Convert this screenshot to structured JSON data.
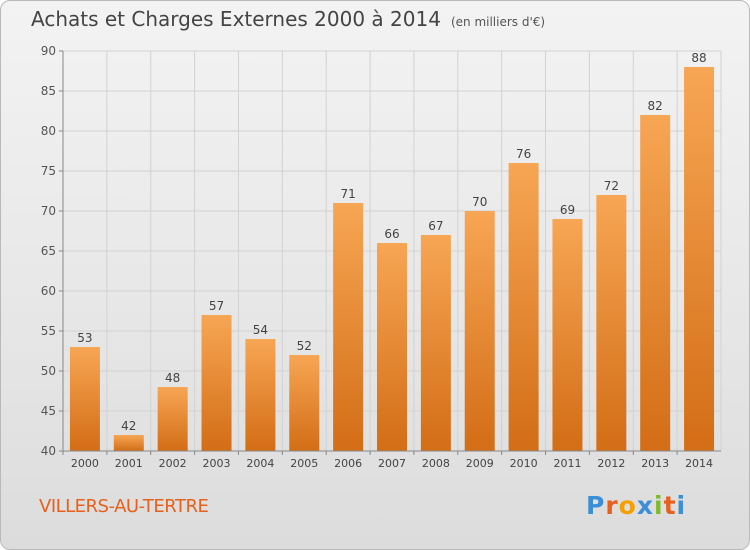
{
  "header": {
    "title": "Achats et Charges Externes 2000 à 2014",
    "subtitle": "(en milliers d'€)"
  },
  "footer": {
    "commune": "VILLERS-AU-TERTRE",
    "logo_letters": [
      "P",
      "r",
      "o",
      "x",
      "i",
      "t",
      "i"
    ],
    "logo_colors": [
      "#3a8fd8",
      "#e8601c",
      "#f5a000",
      "#3a8fd8",
      "#7dbb2a",
      "#e8601c",
      "#3a8fd8"
    ]
  },
  "colors": {
    "bar_light": "#f7a654",
    "bar_dark": "#d36d16",
    "grid": "#d2d2d2",
    "axis": "#888888"
  },
  "chart_data": {
    "type": "bar",
    "title": "Achats et Charges Externes 2000 à 2014",
    "subtitle": "(en milliers d'€)",
    "categories": [
      "2000",
      "2001",
      "2002",
      "2003",
      "2004",
      "2005",
      "2006",
      "2007",
      "2008",
      "2009",
      "2010",
      "2011",
      "2012",
      "2013",
      "2014"
    ],
    "values": [
      53,
      42,
      48,
      57,
      54,
      52,
      71,
      66,
      67,
      70,
      76,
      69,
      72,
      82,
      88
    ],
    "ylim": [
      40,
      90
    ],
    "yticks": [
      40,
      45,
      50,
      55,
      60,
      65,
      70,
      75,
      80,
      85,
      90
    ],
    "grid": true
  }
}
